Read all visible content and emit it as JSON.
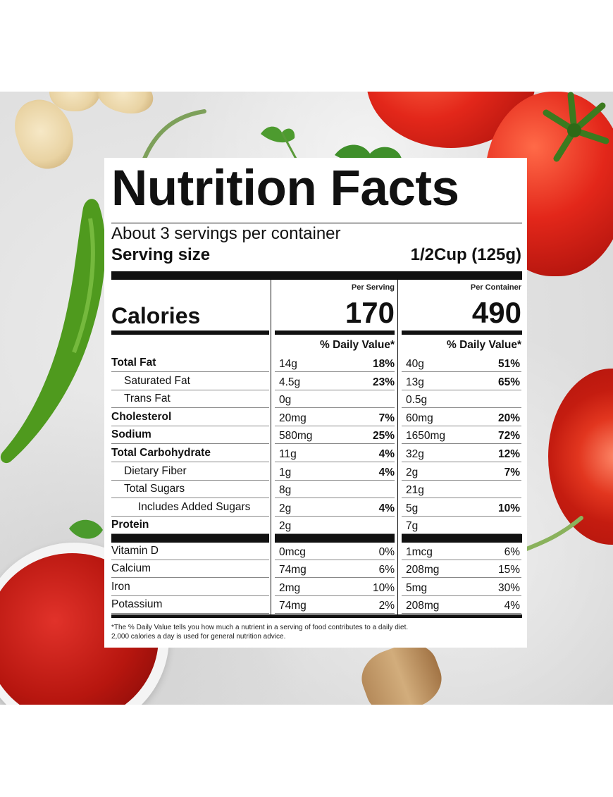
{
  "label": {
    "title": "Nutrition Facts",
    "servings_per_container": "About 3 servings per container",
    "serving_size_label": "Serving size",
    "serving_size_value": "1/2Cup (125g)",
    "per_serving_head": "Per Serving",
    "per_container_head": "Per Container",
    "calories_label": "Calories",
    "calories_per_serving": "170",
    "calories_per_container": "490",
    "dv_head": "% Daily Value*",
    "nutrients": [
      {
        "name": "Total Fat",
        "bold": true,
        "indent": 0,
        "serv_amt": "14g",
        "serv_dv": "18%",
        "cont_amt": "40g",
        "cont_dv": "51%"
      },
      {
        "name": "Saturated Fat",
        "bold": false,
        "indent": 1,
        "serv_amt": "4.5g",
        "serv_dv": "23%",
        "cont_amt": "13g",
        "cont_dv": "65%"
      },
      {
        "name": "Trans Fat",
        "bold": false,
        "indent": 1,
        "serv_amt": "0g",
        "serv_dv": "",
        "cont_amt": "0.5g",
        "cont_dv": ""
      },
      {
        "name": "Cholesterol",
        "bold": true,
        "indent": 0,
        "serv_amt": "20mg",
        "serv_dv": "7%",
        "cont_amt": "60mg",
        "cont_dv": "20%"
      },
      {
        "name": "Sodium",
        "bold": true,
        "indent": 0,
        "serv_amt": "580mg",
        "serv_dv": "25%",
        "cont_amt": "1650mg",
        "cont_dv": "72%"
      },
      {
        "name": "Total Carbohydrate",
        "bold": true,
        "indent": 0,
        "serv_amt": "11g",
        "serv_dv": "4%",
        "cont_amt": "32g",
        "cont_dv": "12%"
      },
      {
        "name": "Dietary Fiber",
        "bold": false,
        "indent": 1,
        "serv_amt": "1g",
        "serv_dv": "4%",
        "cont_amt": "2g",
        "cont_dv": "7%"
      },
      {
        "name": "Total Sugars",
        "bold": false,
        "indent": 1,
        "serv_amt": "8g",
        "serv_dv": "",
        "cont_amt": "21g",
        "cont_dv": ""
      },
      {
        "name": "Includes Added Sugars",
        "bold": false,
        "indent": 2,
        "serv_amt": "2g",
        "serv_dv": "4%",
        "cont_amt": "5g",
        "cont_dv": "10%"
      },
      {
        "name": "Protein",
        "bold": true,
        "indent": 0,
        "serv_amt": "2g",
        "serv_dv": "",
        "cont_amt": "7g",
        "cont_dv": ""
      }
    ],
    "vitamins": [
      {
        "name": "Vitamin D",
        "serv_amt": "0mcg",
        "serv_dv": "0%",
        "cont_amt": "1mcg",
        "cont_dv": "6%"
      },
      {
        "name": "Calcium",
        "serv_amt": "74mg",
        "serv_dv": "6%",
        "cont_amt": "208mg",
        "cont_dv": "15%"
      },
      {
        "name": "Iron",
        "serv_amt": "2mg",
        "serv_dv": "10%",
        "cont_amt": "5mg",
        "cont_dv": "30%"
      },
      {
        "name": "Potassium",
        "serv_amt": "74mg",
        "serv_dv": "2%",
        "cont_amt": "208mg",
        "cont_dv": "4%"
      }
    ],
    "footnote_line1": "*The % Daily Value tells you how much a nutrient in a serving of food contributes to a daily diet.",
    "footnote_line2": "2,000 calories a day is used for general nutrition advice."
  },
  "background": {
    "items": [
      "ginger-slices",
      "tomato",
      "cut-tomato",
      "green-chili-pepper",
      "tomato-paste-bowl",
      "ginger-root",
      "cilantro"
    ],
    "colors": {
      "tomato": "#e3271a",
      "pepper": "#4f9a1e",
      "paste": "#b7160f",
      "surface": "#e2e2e2"
    }
  }
}
